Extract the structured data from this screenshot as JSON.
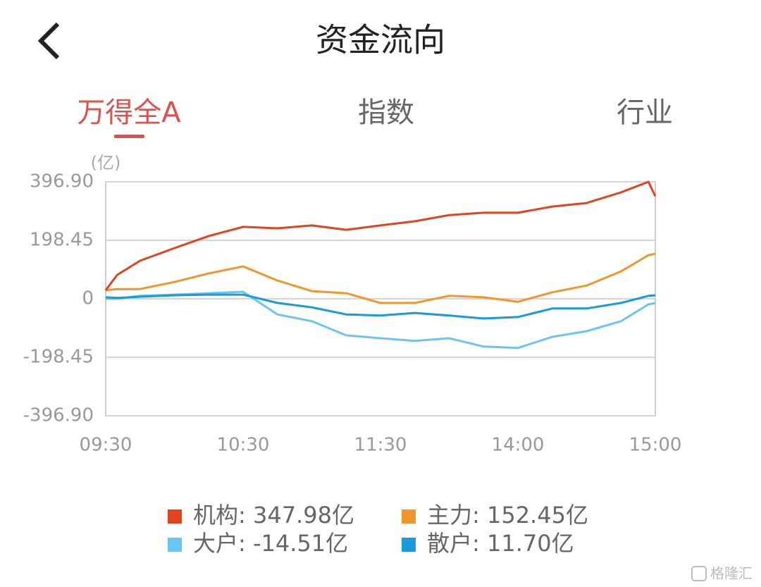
{
  "header": {
    "title": "资金流向"
  },
  "tabs": [
    {
      "label": "万得全A",
      "active": true
    },
    {
      "label": "指数",
      "active": false
    },
    {
      "label": "行业",
      "active": false
    }
  ],
  "chart_data": {
    "type": "line",
    "y_unit": "(亿)",
    "x": [
      0,
      5,
      15,
      30,
      45,
      60,
      75,
      90,
      105,
      120,
      135,
      150,
      165,
      180,
      195,
      210,
      225,
      237,
      240
    ],
    "xlim": [
      0,
      240
    ],
    "xticks": [
      {
        "value": 0,
        "label": "09:30"
      },
      {
        "value": 60,
        "label": "10:30"
      },
      {
        "value": 120,
        "label": "11:30"
      },
      {
        "value": 180,
        "label": "14:00"
      },
      {
        "value": 240,
        "label": "15:00"
      }
    ],
    "ylim": [
      -396.9,
      396.9
    ],
    "yticks": [
      {
        "value": 396.9,
        "label": "396.90"
      },
      198.45,
      0,
      -198.45,
      {
        "value": -396.9,
        "label": "-396.90"
      }
    ],
    "grid": true,
    "series": [
      {
        "name": "机构",
        "color": "#e2431e",
        "values": [
          29,
          81,
          129,
          172,
          213,
          244,
          239,
          249,
          234,
          249,
          263,
          284,
          292,
          292,
          313,
          325,
          361,
          397,
          347.98
        ],
        "value_labels": [
          null,
          null,
          null,
          null,
          null,
          null,
          null,
          null,
          null,
          null,
          null,
          null,
          null,
          null,
          null,
          null,
          null,
          null,
          "347.98亿"
        ]
      },
      {
        "name": "主力",
        "color": "#f0962c",
        "values": [
          29,
          33,
          33,
          57,
          86,
          110,
          62,
          26,
          19,
          -14,
          -14,
          10,
          5,
          -10,
          22,
          45,
          93,
          148,
          152.45
        ],
        "value_labels": [
          null,
          null,
          null,
          null,
          null,
          null,
          null,
          null,
          null,
          null,
          null,
          null,
          null,
          null,
          null,
          null,
          null,
          null,
          "152.45亿"
        ]
      },
      {
        "name": "大户",
        "color": "#6cc4f3",
        "values": [
          0,
          0,
          10,
          14,
          19,
          24,
          -53,
          -76,
          -124,
          -134,
          -143,
          -134,
          -162,
          -167,
          -129,
          -110,
          -76,
          -19,
          -14.51
        ],
        "value_labels": [
          null,
          null,
          null,
          null,
          null,
          null,
          null,
          null,
          null,
          null,
          null,
          null,
          null,
          null,
          null,
          null,
          null,
          null,
          "-14.51亿"
        ]
      },
      {
        "name": "散户",
        "color": "#1a9ad8",
        "values": [
          5,
          3,
          7,
          12,
          14,
          14,
          -14,
          -29,
          -53,
          -57,
          -48,
          -57,
          -67,
          -62,
          -33,
          -33,
          -14,
          10,
          11.7
        ],
        "value_labels": [
          null,
          null,
          null,
          null,
          null,
          null,
          null,
          null,
          null,
          null,
          null,
          null,
          null,
          null,
          null,
          null,
          null,
          null,
          "11.70亿"
        ]
      }
    ]
  },
  "watermark": "格隆汇"
}
